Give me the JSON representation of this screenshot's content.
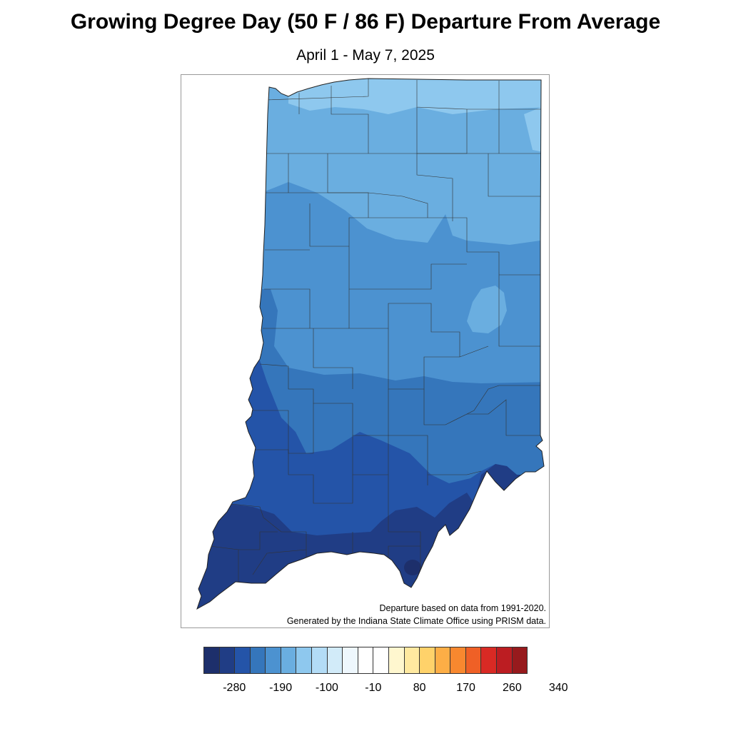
{
  "title": "Growing Degree Day (50 F / 86 F) Departure From Average",
  "subtitle": "April 1 - May 7, 2025",
  "credits": {
    "line1": "Departure based on data from 1991-2020.",
    "line2": "Generated by the Indiana State Climate Office using PRISM data."
  },
  "legend": {
    "colors": [
      "#1d2f6b",
      "#203d85",
      "#2454a8",
      "#3576bb",
      "#4c92d0",
      "#6aaee0",
      "#8ec8ee",
      "#b3dcf6",
      "#d2ebf9",
      "#eef7fd",
      "#ffffff",
      "#ffffff",
      "#fff7cf",
      "#ffe9a0",
      "#ffd26a",
      "#fdae46",
      "#f8882f",
      "#ef6026",
      "#d92a24",
      "#bc1d22",
      "#971a1d"
    ],
    "tick_labels": [
      "-280",
      "-190",
      "-100",
      "-10",
      "80",
      "170",
      "260",
      "340"
    ]
  },
  "map_data": {
    "region": "Indiana",
    "band_colors": {
      "departure_-120": "#8ec8ee",
      "departure_-150": "#6aaee0",
      "departure_-180": "#4c92d0",
      "departure_-210": "#3576bb",
      "departure_-240": "#2454a8",
      "departure_-270": "#203d85",
      "departure_-300": "#1d2f6b"
    }
  }
}
